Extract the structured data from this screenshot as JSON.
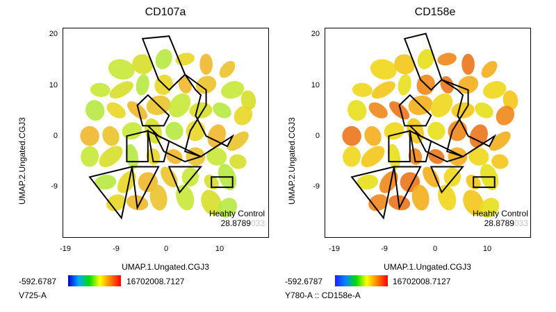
{
  "chart_data": [
    {
      "type": "scatter",
      "title": "CD107a",
      "xlabel": "UMAP.1.Ungated.CGJ3",
      "ylabel": "UMAP.2.Ungated.CGJ3",
      "xticks": [
        "-19",
        "-9",
        "0",
        "10"
      ],
      "yticks": [
        "20",
        "10",
        "0",
        "-9"
      ],
      "xlim": [
        -20,
        19
      ],
      "ylim": [
        -20,
        21
      ],
      "annotation": {
        "line1": "Heahty Control",
        "value": "28.8789",
        "value_faded": "033"
      },
      "colorbar": {
        "min": "-592.6787",
        "max": "16702008.7127",
        "colors": [
          "#0000cc",
          "#00aaff",
          "#00dd00",
          "#ffff00",
          "#ff8000",
          "#ff0000"
        ]
      },
      "parameter": "V725-A",
      "cluster_palette": [
        "#c8e83a",
        "#d8e030",
        "#b8e845",
        "#e8d82a",
        "#f0b830",
        "#ecc430"
      ],
      "gates": [
        [
          [
            -5,
            19
          ],
          [
            0,
            19.5
          ],
          [
            3,
            12
          ],
          [
            0,
            9
          ],
          [
            -2,
            11
          ]
        ],
        [
          [
            3,
            12
          ],
          [
            7,
            9
          ],
          [
            7,
            6
          ],
          [
            4,
            1
          ],
          [
            3,
            -3
          ],
          [
            6,
            -4
          ],
          [
            9,
            -2
          ],
          [
            12,
            0
          ],
          [
            11,
            -2
          ],
          [
            7,
            0
          ],
          [
            5,
            4
          ],
          [
            6,
            8
          ],
          [
            5,
            9
          ]
        ],
        [
          [
            -6,
            6
          ],
          [
            -4,
            8
          ],
          [
            0,
            4
          ],
          [
            -1,
            2
          ],
          [
            -5,
            2
          ]
        ],
        [
          [
            -4,
            2
          ],
          [
            -2,
            0
          ],
          [
            2,
            -2
          ],
          [
            6,
            -4
          ],
          [
            3,
            -5
          ],
          [
            -1,
            -3
          ],
          [
            -3,
            1
          ]
        ],
        [
          [
            -8,
            0
          ],
          [
            -4,
            1
          ],
          [
            -4,
            -5
          ],
          [
            -8,
            -5
          ]
        ],
        [
          [
            -4,
            1
          ],
          [
            0,
            -1
          ],
          [
            -1,
            -5
          ],
          [
            -3,
            -5
          ]
        ],
        [
          [
            -15,
            -8
          ],
          [
            -7,
            -6
          ],
          [
            -9,
            -16
          ]
        ],
        [
          [
            -7,
            -6
          ],
          [
            -2,
            -6
          ],
          [
            -6,
            -14
          ]
        ],
        [
          [
            0,
            -6
          ],
          [
            6,
            -6
          ],
          [
            2,
            -11
          ]
        ],
        [
          [
            8,
            -8
          ],
          [
            12,
            -8
          ],
          [
            12,
            -10
          ],
          [
            8,
            -10
          ]
        ]
      ]
    },
    {
      "type": "scatter",
      "title": "CD158e",
      "xlabel": "UMAP.1.Ungated.CGJ3",
      "ylabel": "UMAP.2.Ungated.CGJ3",
      "xticks": [
        "-19",
        "-9",
        "0",
        "10"
      ],
      "yticks": [
        "20",
        "10",
        "0",
        "-9"
      ],
      "xlim": [
        -20,
        19
      ],
      "ylim": [
        -20,
        21
      ],
      "annotation": {
        "line1": "Heahty Control",
        "value": "28.8789",
        "value_faded": "033"
      },
      "colorbar": {
        "min": "-592.6787",
        "max": "16702008.7127",
        "colors": [
          "#2020ff",
          "#0088ff",
          "#00dd00",
          "#ffff00",
          "#ff8000",
          "#ff0000"
        ]
      },
      "parameter": "Y780-A :: CD158e-A",
      "cluster_palette": [
        "#f0d820",
        "#f4c81e",
        "#e8e020",
        "#f08a20",
        "#ec7820",
        "#f4b020"
      ],
      "gates": [
        [
          [
            -5,
            19
          ],
          [
            -1,
            20
          ],
          [
            2,
            11
          ],
          [
            0,
            9
          ],
          [
            -2,
            11
          ]
        ],
        [
          [
            2,
            11
          ],
          [
            7,
            9
          ],
          [
            7,
            6
          ],
          [
            4,
            1
          ],
          [
            3,
            -3
          ],
          [
            6,
            -4
          ],
          [
            9,
            -2
          ],
          [
            12,
            0
          ],
          [
            11,
            -2
          ],
          [
            7,
            0
          ],
          [
            5,
            4
          ],
          [
            6,
            8
          ],
          [
            5,
            9
          ]
        ],
        [
          [
            -6,
            6
          ],
          [
            -4,
            8
          ],
          [
            0,
            4
          ],
          [
            -1,
            2
          ],
          [
            -5,
            2
          ]
        ],
        [
          [
            -4,
            2
          ],
          [
            -2,
            0
          ],
          [
            2,
            -2
          ],
          [
            6,
            -4
          ],
          [
            3,
            -5
          ],
          [
            -1,
            -3
          ],
          [
            -3,
            1
          ]
        ],
        [
          [
            -8,
            0
          ],
          [
            -4,
            1
          ],
          [
            -4,
            -5
          ],
          [
            -8,
            -5
          ]
        ],
        [
          [
            -4,
            1
          ],
          [
            0,
            -1
          ],
          [
            -1,
            -5
          ],
          [
            -3,
            -5
          ]
        ],
        [
          [
            -15,
            -8
          ],
          [
            -7,
            -6
          ],
          [
            -9,
            -16
          ]
        ],
        [
          [
            -7,
            -6
          ],
          [
            -2,
            -6
          ],
          [
            -6,
            -14
          ]
        ],
        [
          [
            0,
            -6
          ],
          [
            6,
            -6
          ],
          [
            2,
            -11
          ]
        ],
        [
          [
            8,
            -8
          ],
          [
            12,
            -8
          ],
          [
            12,
            -10
          ],
          [
            8,
            -10
          ]
        ]
      ]
    }
  ]
}
